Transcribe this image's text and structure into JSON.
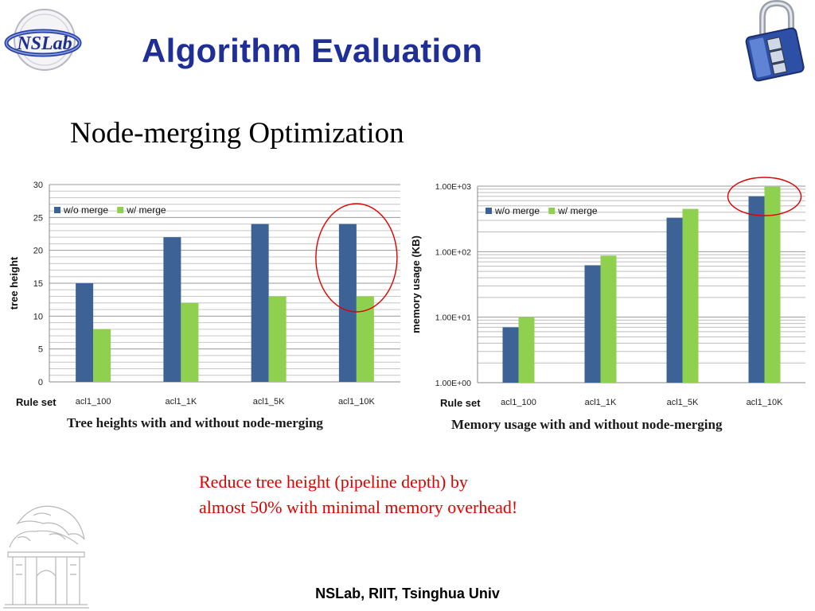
{
  "header": {
    "title": "Algorithm Evaluation",
    "subtitle": "Node-merging Optimization"
  },
  "logo": {
    "text": "NSLab"
  },
  "note": {
    "line1": "Reduce tree height (pipeline depth) by",
    "line2": "almost 50% with minimal memory overhead!"
  },
  "footer": {
    "text": "NSLab,  RIIT,  Tsinghua Univ"
  },
  "colors": {
    "title": "#1f2f96",
    "wo_merge": "#3d6296",
    "w_merge": "#8fd14f",
    "highlight": "#e00000",
    "note": "#e00000"
  },
  "chart_data": [
    {
      "type": "bar",
      "caption": "Tree heights with and without node-merging",
      "xlabel": "Rule set",
      "ylabel": "tree height",
      "categories": [
        "acl1_100",
        "acl1_1K",
        "acl1_5K",
        "acl1_10K"
      ],
      "series": [
        {
          "name": "w/o merge",
          "color": "#3d6296",
          "values": [
            15,
            22,
            24,
            24
          ]
        },
        {
          "name": "w/ merge",
          "color": "#8fd14f",
          "values": [
            8,
            12,
            13,
            13
          ]
        }
      ],
      "ylim": [
        0,
        30
      ],
      "yticks": [
        0,
        5,
        10,
        15,
        20,
        25,
        30
      ],
      "scale": "linear",
      "grid": true,
      "legend": "top-left",
      "highlight_category": "acl1_10K"
    },
    {
      "type": "bar",
      "caption": "Memory usage with and without node-merging",
      "xlabel": "Rule set",
      "ylabel": "memory usage (KB)",
      "categories": [
        "acl1_100",
        "acl1_1K",
        "acl1_5K",
        "acl1_10K"
      ],
      "series": [
        {
          "name": "w/o merge",
          "color": "#3d6296",
          "values": [
            7,
            62,
            330,
            700
          ]
        },
        {
          "name": "w/ merge",
          "color": "#8fd14f",
          "values": [
            10,
            87,
            450,
            980
          ]
        }
      ],
      "ylim": [
        1,
        1000
      ],
      "yticks": [
        1,
        10,
        100,
        1000
      ],
      "ytick_labels": [
        "1.00E+00",
        "1.00E+01",
        "1.00E+02",
        "1.00E+03"
      ],
      "scale": "log",
      "grid": true,
      "legend": "top-left",
      "highlight_category": "acl1_10K"
    }
  ]
}
